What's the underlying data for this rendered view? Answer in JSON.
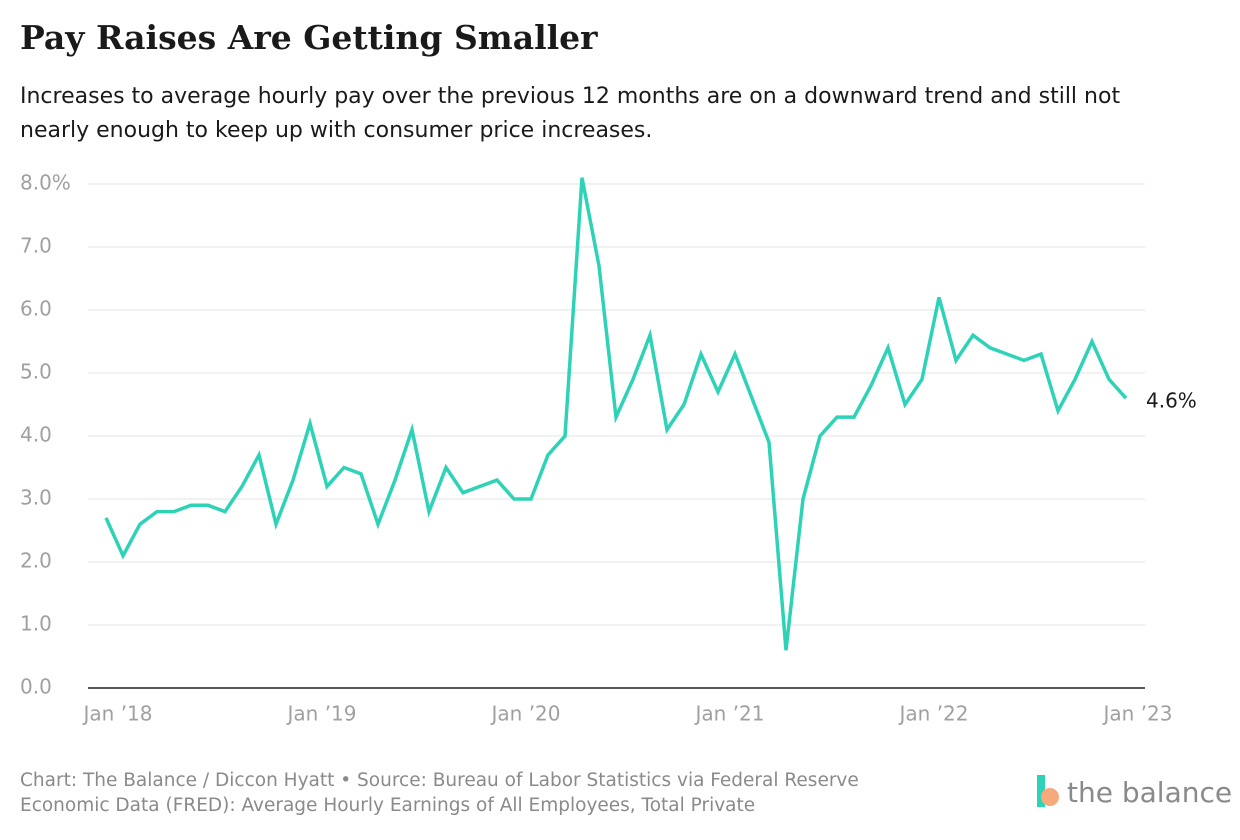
{
  "chart_data": {
    "type": "line",
    "title": "Pay Raises Are Getting Smaller",
    "subtitle": [
      "Increases to average hourly pay over the previous 12 months are on a downward trend and still not",
      "nearly enough to keep up with consumer price increases."
    ],
    "footer": [
      "Chart: The Balance / Diccon Hyatt • Source: Bureau of Labor Statistics via Federal Reserve",
      "Economic Data (FRED): Average Hourly Earnings of All Employees, Total Private"
    ],
    "brand": "the balance",
    "categories": [
      "Jan ’18",
      null,
      null,
      null,
      null,
      null,
      null,
      null,
      null,
      null,
      null,
      null,
      "Jan ’19",
      null,
      null,
      null,
      null,
      null,
      null,
      null,
      null,
      null,
      null,
      null,
      "Jan ’20",
      null,
      null,
      null,
      null,
      null,
      null,
      null,
      null,
      null,
      null,
      null,
      "Jan ’21",
      null,
      null,
      null,
      null,
      null,
      null,
      null,
      null,
      null,
      null,
      null,
      "Jan ’22",
      null,
      null,
      null,
      null,
      null,
      null,
      null,
      null,
      null,
      null,
      null,
      "Jan ’23"
    ],
    "values": [
      2.7,
      2.1,
      2.6,
      2.8,
      2.8,
      2.9,
      2.9,
      2.8,
      3.2,
      3.7,
      2.6,
      3.3,
      4.2,
      3.2,
      3.5,
      3.4,
      2.6,
      3.3,
      4.1,
      2.8,
      3.5,
      3.1,
      3.2,
      3.3,
      3.0,
      3.0,
      3.7,
      4.0,
      8.1,
      6.7,
      4.3,
      4.9,
      5.6,
      4.1,
      4.5,
      5.3,
      4.7,
      5.3,
      4.6,
      3.9,
      0.6,
      3.0,
      4.0,
      4.3,
      4.3,
      4.8,
      5.4,
      4.5,
      4.9,
      6.2,
      5.2,
      5.6,
      5.4,
      5.3,
      5.2,
      5.3,
      4.4,
      4.9,
      5.5,
      4.9,
      4.6
    ],
    "value_labels": [
      null,
      null,
      null,
      null,
      null,
      null,
      null,
      null,
      null,
      null,
      null,
      null,
      null,
      null,
      null,
      null,
      null,
      null,
      null,
      null,
      null,
      null,
      null,
      null,
      null,
      null,
      null,
      null,
      null,
      null,
      null,
      null,
      null,
      null,
      null,
      null,
      null,
      null,
      null,
      null,
      null,
      null,
      null,
      null,
      null,
      null,
      null,
      null,
      null,
      null,
      null,
      null,
      null,
      null,
      null,
      null,
      null,
      null,
      null,
      null,
      "4.6%"
    ],
    "color": "#2ed3b7",
    "ylim": [
      0,
      8
    ],
    "yticks": [
      {
        "value": 0,
        "label": "0.0"
      },
      {
        "value": 1,
        "label": "1.0"
      },
      {
        "value": 2,
        "label": "2.0"
      },
      {
        "value": 3,
        "label": "3.0"
      },
      {
        "value": 4,
        "label": "4.0"
      },
      {
        "value": 5,
        "label": "5.0"
      },
      {
        "value": 6,
        "label": "6.0"
      },
      {
        "value": 7,
        "label": "7.0"
      },
      {
        "value": 8,
        "label": "8.0%"
      }
    ],
    "grid": true
  }
}
